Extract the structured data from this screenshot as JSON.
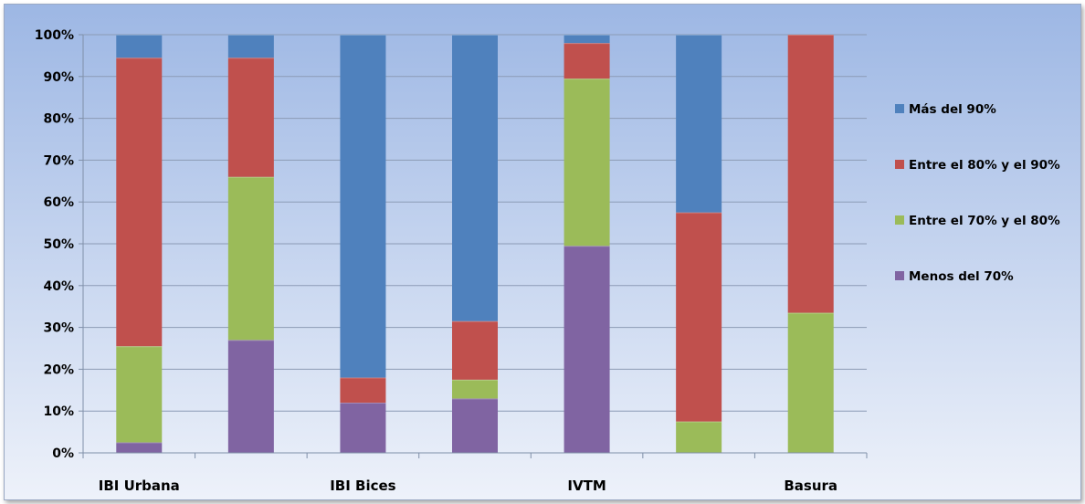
{
  "chart_data": {
    "type": "bar",
    "stacked": true,
    "percent_stacked": true,
    "categories": [
      "IBI Urbana",
      "",
      "IBI Bices",
      "",
      "IVTM",
      "",
      "Basura"
    ],
    "series": [
      {
        "name": "Menos del 70%",
        "color": "#8064A2",
        "values": [
          2.5,
          27,
          12,
          13,
          49.5,
          0,
          0
        ]
      },
      {
        "name": "Entre el 70% y el 80%",
        "color": "#9BBB59",
        "values": [
          23,
          39,
          0,
          4.5,
          40,
          7.5,
          33.5
        ]
      },
      {
        "name": "Entre el 80% y el 90%",
        "color": "#C0504D",
        "values": [
          69,
          28.5,
          6,
          14,
          8.5,
          50,
          66.5
        ]
      },
      {
        "name": "Más del 90%",
        "color": "#4F81BD",
        "values": [
          5.5,
          5.5,
          82,
          68.5,
          2,
          42.5,
          0
        ]
      }
    ],
    "legend_order": [
      "Más del 90%",
      "Entre el 80% y el 90%",
      "Entre el 70% y el 80%",
      "Menos del 70%"
    ],
    "y_ticks": [
      "0%",
      "10%",
      "20%",
      "30%",
      "40%",
      "50%",
      "60%",
      "70%",
      "80%",
      "90%",
      "100%"
    ],
    "ylim": [
      0,
      100
    ],
    "grid": true,
    "legend_position": "right",
    "title": "",
    "xlabel": "",
    "ylabel": ""
  },
  "style": {
    "background_top": "#9DB7E4",
    "background_bottom": "#EEF2FA",
    "grid_color": "#8C9BB5",
    "axis_color": "#7F8FA8"
  }
}
